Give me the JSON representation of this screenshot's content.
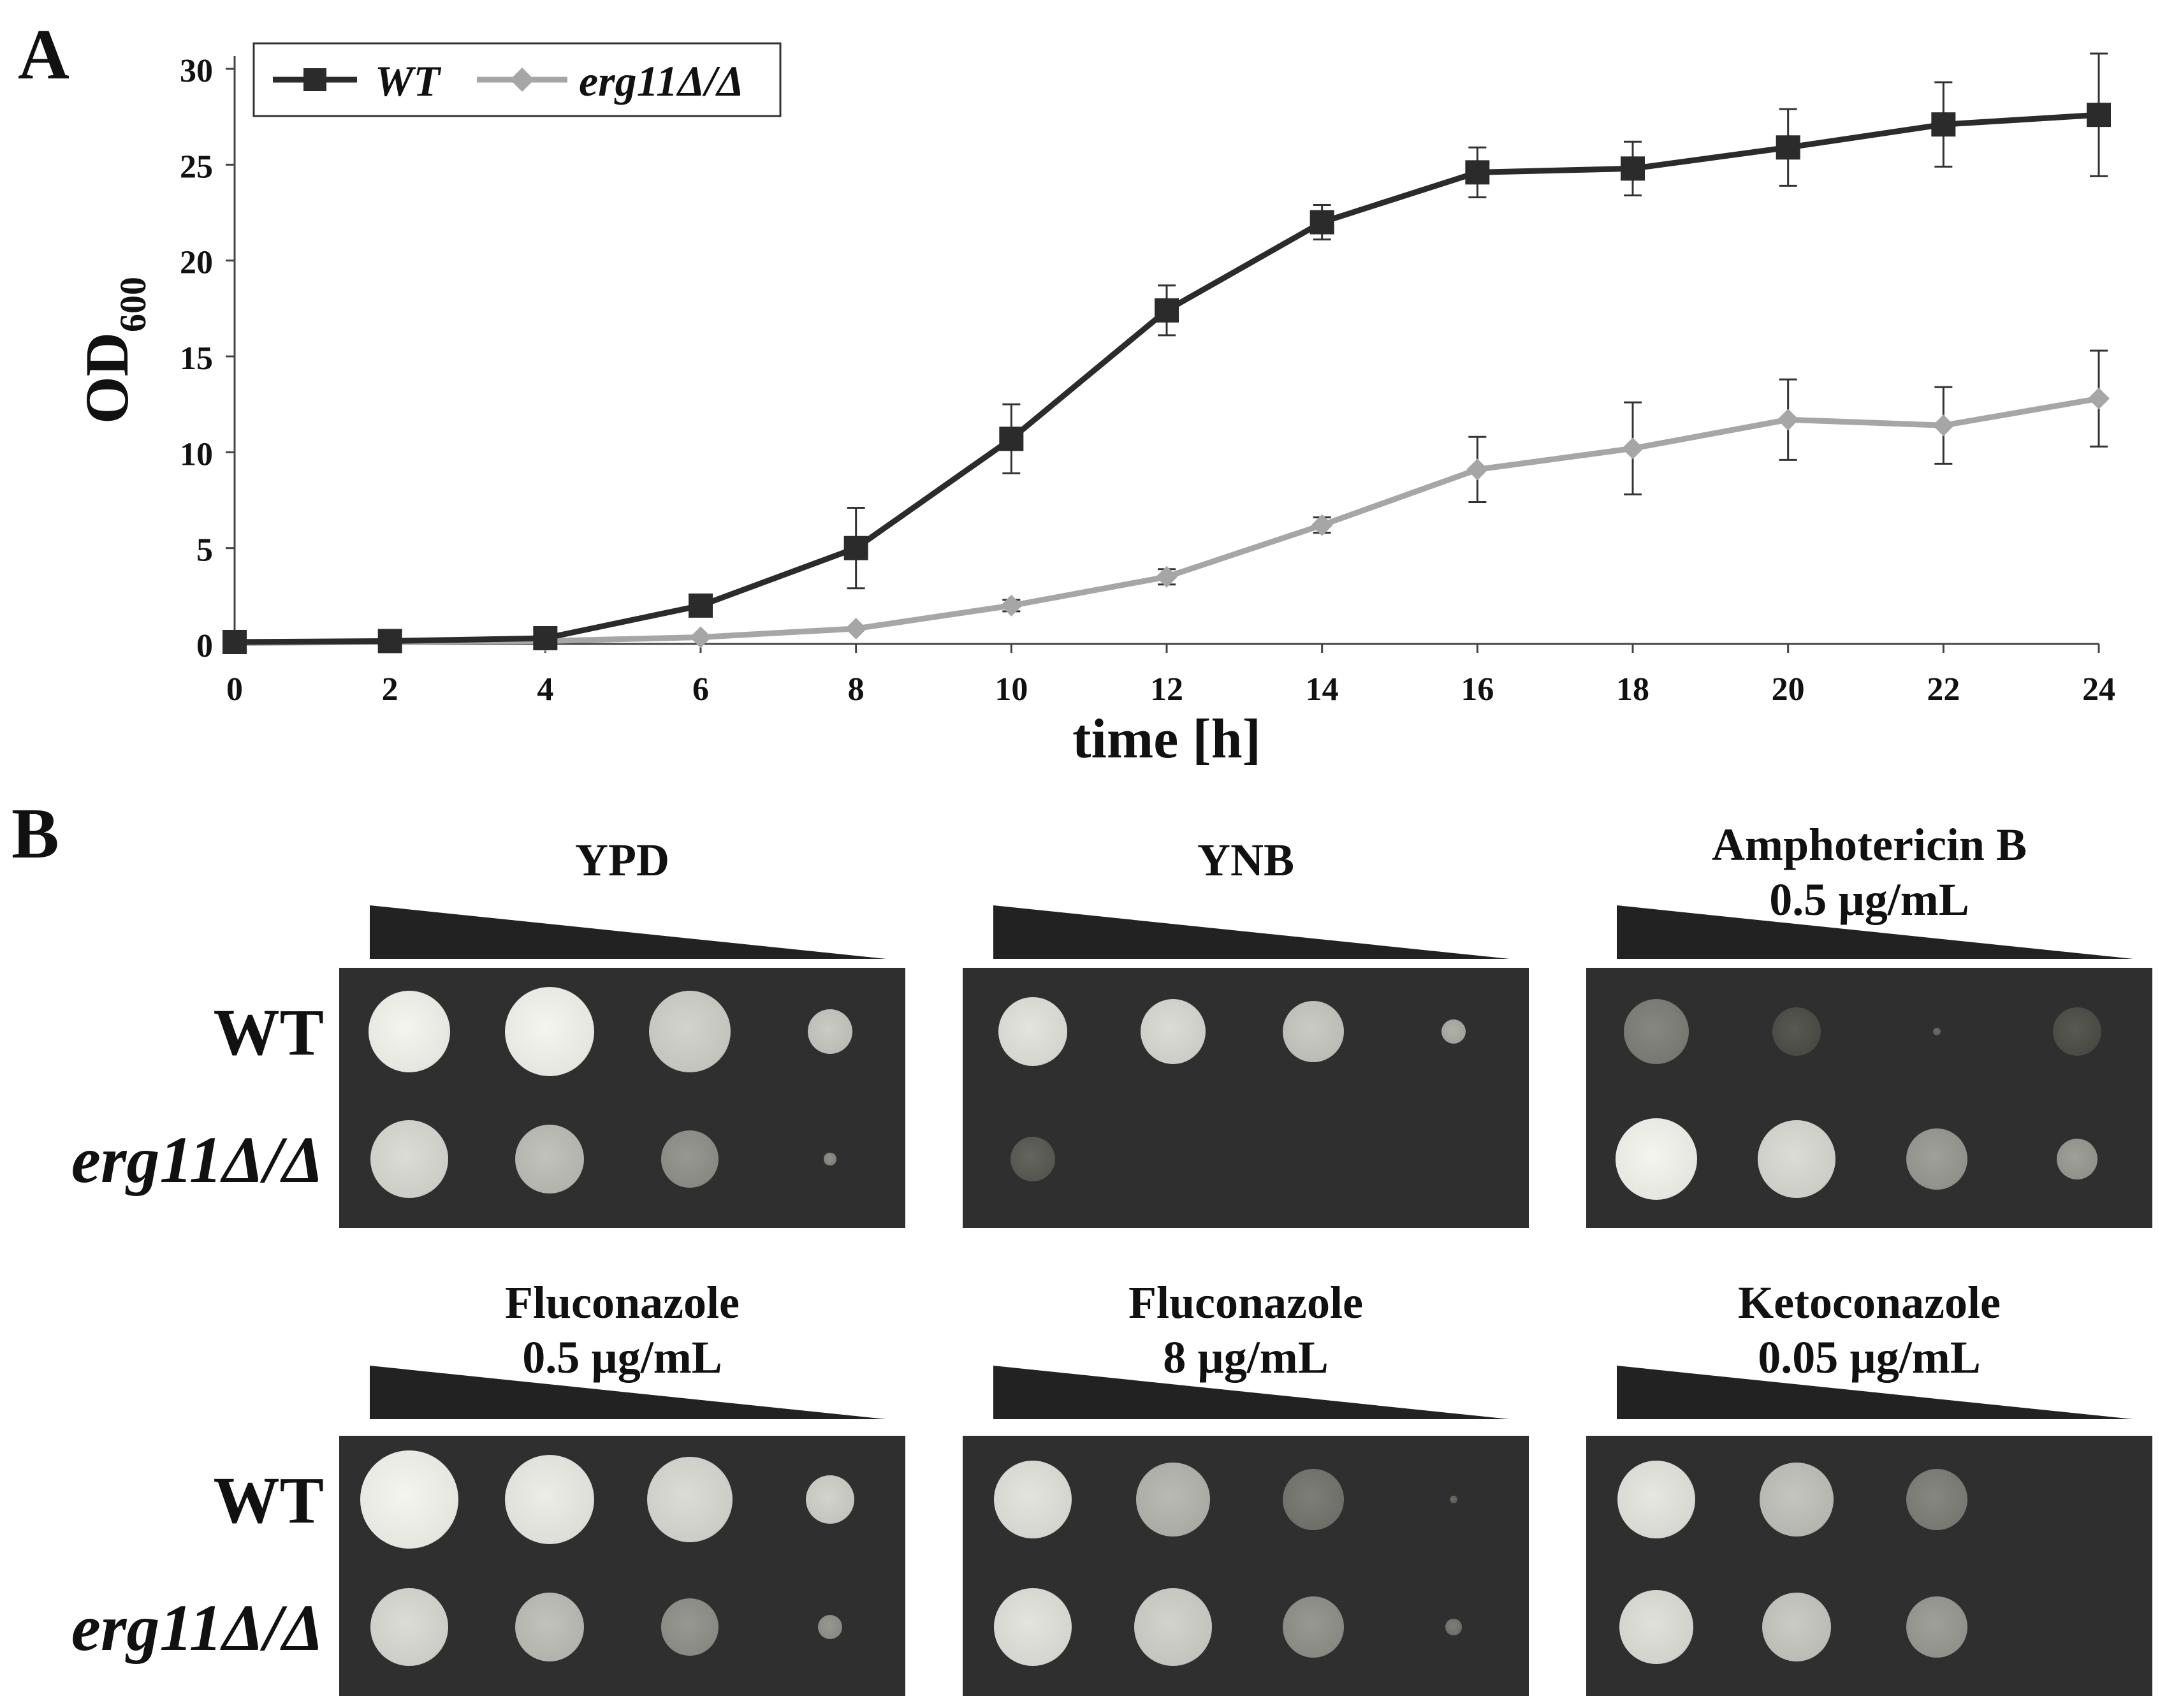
{
  "panels": {
    "a_label": "A",
    "b_label": "B"
  },
  "chart_data": {
    "type": "line",
    "xlabel": "time [h]",
    "ylabel_main": "OD",
    "ylabel_sub": "600",
    "xlim": [
      0,
      24
    ],
    "ylim": [
      0,
      30
    ],
    "xticks": [
      0,
      2,
      4,
      6,
      8,
      10,
      12,
      14,
      16,
      18,
      20,
      22,
      24
    ],
    "yticks": [
      0,
      5,
      10,
      15,
      20,
      25,
      30
    ],
    "legend_position": "top-left",
    "x": [
      0,
      2,
      4,
      6,
      8,
      10,
      12,
      14,
      16,
      18,
      20,
      22,
      24
    ],
    "series": [
      {
        "name": "WT",
        "marker": "square",
        "color": "#2b2b2b",
        "values": [
          0.1,
          0.15,
          0.3,
          2.0,
          5.0,
          10.7,
          17.4,
          22.0,
          24.6,
          24.8,
          25.9,
          27.1,
          27.6
        ],
        "errors": [
          0.1,
          0.1,
          0.2,
          0.4,
          2.1,
          1.8,
          1.3,
          0.9,
          1.3,
          1.4,
          2.0,
          2.2,
          3.2
        ]
      },
      {
        "name": "erg11Δ/Δ",
        "marker": "diamond",
        "color": "#a6a6a6",
        "values": [
          0.05,
          0.1,
          0.15,
          0.35,
          0.8,
          2.0,
          3.5,
          6.2,
          9.1,
          10.2,
          11.7,
          11.4,
          12.8
        ],
        "errors": [
          0.05,
          0.05,
          0.1,
          0.15,
          0.2,
          0.3,
          0.4,
          0.4,
          1.7,
          2.4,
          2.1,
          2.0,
          2.5
        ]
      }
    ]
  },
  "spot_assay": {
    "row_labels": [
      "WT",
      "erg11Δ/Δ"
    ],
    "conditions": [
      {
        "title_line1": "YPD",
        "title_line2": "",
        "wt": [
          [
            1.0,
            1.0
          ],
          [
            1.1,
            1.0
          ],
          [
            1.0,
            0.8
          ],
          [
            0.55,
            0.75
          ]
        ],
        "mut": [
          [
            0.95,
            0.85
          ],
          [
            0.85,
            0.7
          ],
          [
            0.7,
            0.45
          ],
          [
            0.15,
            0.4
          ]
        ]
      },
      {
        "title_line1": "YNB",
        "title_line2": "",
        "wt": [
          [
            0.85,
            0.9
          ],
          [
            0.8,
            0.85
          ],
          [
            0.75,
            0.75
          ],
          [
            0.3,
            0.6
          ]
        ],
        "mut": [
          [
            0.55,
            0.15
          ],
          [
            0.0,
            0.0
          ],
          [
            0.0,
            0.0
          ],
          [
            0.0,
            0.0
          ]
        ]
      },
      {
        "title_line1": "Amphotericin B",
        "title_line2": "0.5 µg/mL",
        "wt": [
          [
            0.8,
            0.35
          ],
          [
            0.6,
            0.08
          ],
          [
            0.1,
            0.2
          ],
          [
            0.6,
            0.08
          ]
        ],
        "mut": [
          [
            1.0,
            1.0
          ],
          [
            0.95,
            0.85
          ],
          [
            0.75,
            0.5
          ],
          [
            0.5,
            0.5
          ]
        ]
      },
      {
        "title_line1": "Fluconazole",
        "title_line2": "0.5 µg/mL",
        "wt": [
          [
            1.2,
            1.0
          ],
          [
            1.1,
            0.95
          ],
          [
            1.05,
            0.85
          ],
          [
            0.6,
            0.8
          ]
        ],
        "mut": [
          [
            0.95,
            0.85
          ],
          [
            0.85,
            0.7
          ],
          [
            0.7,
            0.45
          ],
          [
            0.3,
            0.45
          ]
        ]
      },
      {
        "title_line1": "Fluconazole",
        "title_line2": "8 µg/mL",
        "wt": [
          [
            0.95,
            0.9
          ],
          [
            0.9,
            0.65
          ],
          [
            0.75,
            0.3
          ],
          [
            0.1,
            0.2
          ]
        ],
        "mut": [
          [
            0.95,
            0.9
          ],
          [
            0.95,
            0.8
          ],
          [
            0.75,
            0.45
          ],
          [
            0.2,
            0.3
          ]
        ]
      },
      {
        "title_line1": "Ketoconazole",
        "title_line2": "0.05 µg/mL",
        "wt": [
          [
            0.95,
            0.92
          ],
          [
            0.9,
            0.72
          ],
          [
            0.75,
            0.35
          ],
          [
            0.0,
            0.0
          ]
        ],
        "mut": [
          [
            0.9,
            0.88
          ],
          [
            0.85,
            0.75
          ],
          [
            0.75,
            0.5
          ],
          [
            0.0,
            0.0
          ]
        ]
      }
    ]
  }
}
